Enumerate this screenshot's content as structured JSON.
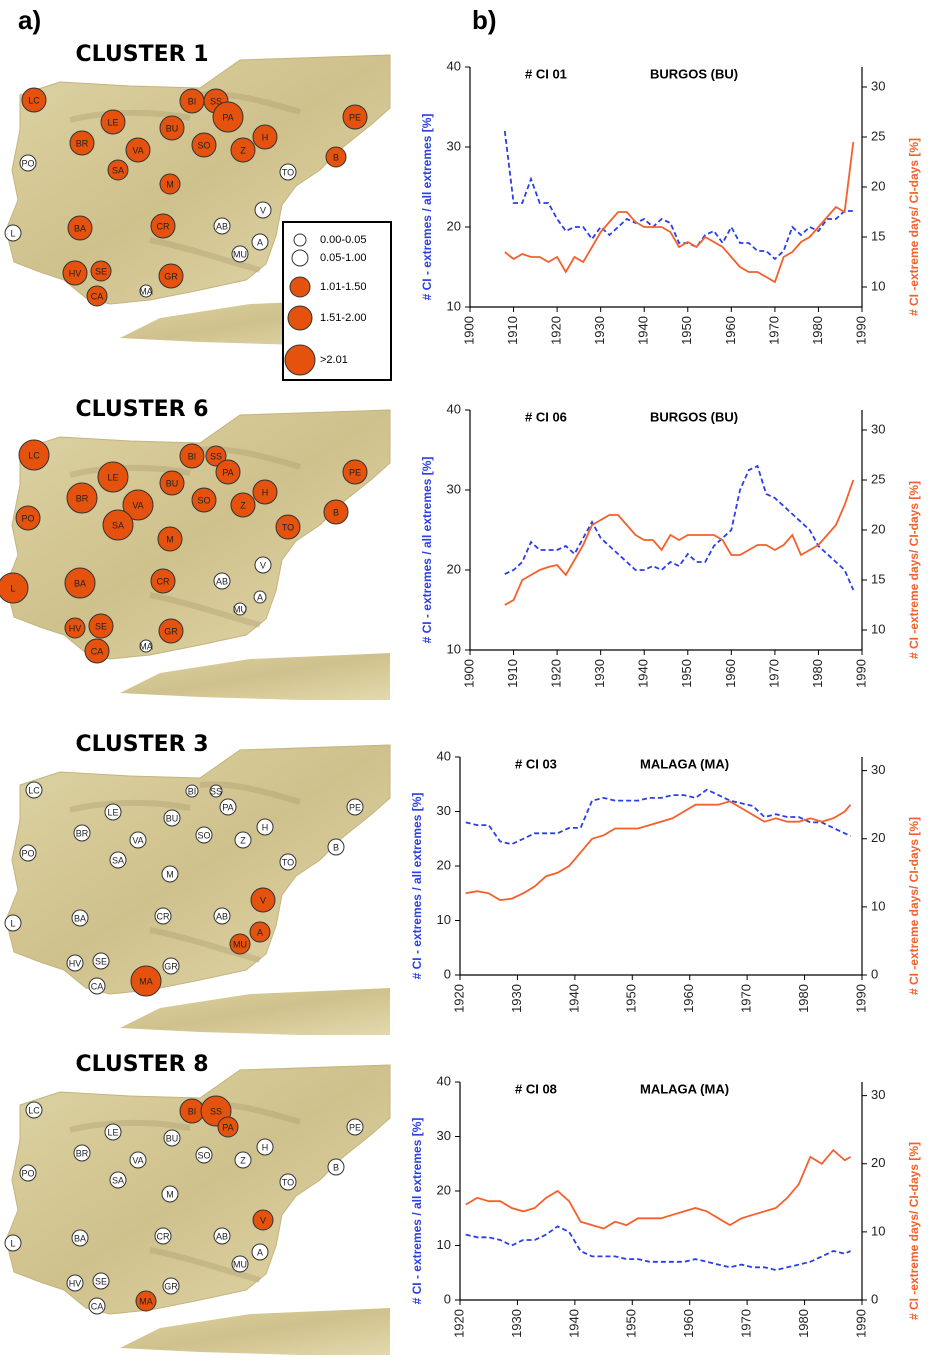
{
  "panel_labels": [
    "a)",
    "b)"
  ],
  "legend": {
    "labels": [
      "0.00-0.05",
      "0.05-1.00",
      "1.01-1.50",
      "1.51-2.00",
      ">2.01"
    ]
  },
  "maps": [
    {
      "title": "CLUSTER 1",
      "stations": [
        {
          "label": "LC",
          "class": 3
        },
        {
          "label": "PO",
          "class": 1
        },
        {
          "label": "BR",
          "class": 3
        },
        {
          "label": "LE",
          "class": 3
        },
        {
          "label": "VA",
          "class": 3
        },
        {
          "label": "SA",
          "class": 2
        },
        {
          "label": "BU",
          "class": 3
        },
        {
          "label": "BI",
          "class": 3
        },
        {
          "label": "SS",
          "class": 3
        },
        {
          "label": "PA",
          "class": 4
        },
        {
          "label": "SO",
          "class": 3
        },
        {
          "label": "H",
          "class": 3
        },
        {
          "label": "Z",
          "class": 3
        },
        {
          "label": "PE",
          "class": 3
        },
        {
          "label": "B",
          "class": 2
        },
        {
          "label": "TO",
          "class": 1
        },
        {
          "label": "M",
          "class": 2
        },
        {
          "label": "V",
          "class": 1
        },
        {
          "label": "CR",
          "class": 3
        },
        {
          "label": "AB",
          "class": 1
        },
        {
          "label": "A",
          "class": 1
        },
        {
          "label": "MU",
          "class": 1
        },
        {
          "label": "BA",
          "class": 3
        },
        {
          "label": "L",
          "class": 1
        },
        {
          "label": "HV",
          "class": 3
        },
        {
          "label": "SE",
          "class": 2
        },
        {
          "label": "CA",
          "class": 2
        },
        {
          "label": "MA",
          "class": 0
        },
        {
          "label": "GR",
          "class": 3
        }
      ]
    },
    {
      "title": "CLUSTER 6",
      "stations": [
        {
          "label": "LC",
          "class": 4
        },
        {
          "label": "PO",
          "class": 3
        },
        {
          "label": "BR",
          "class": 4
        },
        {
          "label": "LE",
          "class": 4
        },
        {
          "label": "VA",
          "class": 4
        },
        {
          "label": "SA",
          "class": 4
        },
        {
          "label": "BU",
          "class": 3
        },
        {
          "label": "BI",
          "class": 3
        },
        {
          "label": "SS",
          "class": 2
        },
        {
          "label": "PA",
          "class": 3
        },
        {
          "label": "SO",
          "class": 3
        },
        {
          "label": "H",
          "class": 3
        },
        {
          "label": "Z",
          "class": 3
        },
        {
          "label": "PE",
          "class": 3
        },
        {
          "label": "B",
          "class": 3
        },
        {
          "label": "TO",
          "class": 3
        },
        {
          "label": "M",
          "class": 3
        },
        {
          "label": "V",
          "class": 1
        },
        {
          "label": "CR",
          "class": 3
        },
        {
          "label": "AB",
          "class": 1
        },
        {
          "label": "A",
          "class": 0
        },
        {
          "label": "MU",
          "class": 0
        },
        {
          "label": "BA",
          "class": 4
        },
        {
          "label": "L",
          "class": 4
        },
        {
          "label": "HV",
          "class": 2
        },
        {
          "label": "SE",
          "class": 3
        },
        {
          "label": "CA",
          "class": 3
        },
        {
          "label": "MA",
          "class": 0
        },
        {
          "label": "GR",
          "class": 3
        }
      ]
    },
    {
      "title": "CLUSTER 3",
      "stations": [
        {
          "label": "LC",
          "class": 1
        },
        {
          "label": "PO",
          "class": 1
        },
        {
          "label": "BR",
          "class": 1
        },
        {
          "label": "LE",
          "class": 1
        },
        {
          "label": "VA",
          "class": 1
        },
        {
          "label": "SA",
          "class": 1
        },
        {
          "label": "BU",
          "class": 1
        },
        {
          "label": "BI",
          "class": 0
        },
        {
          "label": "SS",
          "class": 0
        },
        {
          "label": "PA",
          "class": 1
        },
        {
          "label": "SO",
          "class": 1
        },
        {
          "label": "H",
          "class": 1
        },
        {
          "label": "Z",
          "class": 1
        },
        {
          "label": "PE",
          "class": 1
        },
        {
          "label": "B",
          "class": 1
        },
        {
          "label": "TO",
          "class": 1
        },
        {
          "label": "M",
          "class": 1
        },
        {
          "label": "V",
          "class": 3
        },
        {
          "label": "CR",
          "class": 1
        },
        {
          "label": "AB",
          "class": 1
        },
        {
          "label": "A",
          "class": 2
        },
        {
          "label": "MU",
          "class": 2
        },
        {
          "label": "BA",
          "class": 1
        },
        {
          "label": "L",
          "class": 1
        },
        {
          "label": "HV",
          "class": 1
        },
        {
          "label": "SE",
          "class": 1
        },
        {
          "label": "CA",
          "class": 1
        },
        {
          "label": "MA",
          "class": 4
        },
        {
          "label": "GR",
          "class": 1
        }
      ]
    },
    {
      "title": "CLUSTER 8",
      "stations": [
        {
          "label": "LC",
          "class": 1
        },
        {
          "label": "PO",
          "class": 1
        },
        {
          "label": "BR",
          "class": 1
        },
        {
          "label": "LE",
          "class": 1
        },
        {
          "label": "VA",
          "class": 1
        },
        {
          "label": "SA",
          "class": 1
        },
        {
          "label": "BU",
          "class": 1
        },
        {
          "label": "BI",
          "class": 3
        },
        {
          "label": "SS",
          "class": 4
        },
        {
          "label": "PA",
          "class": 2
        },
        {
          "label": "SO",
          "class": 1
        },
        {
          "label": "H",
          "class": 1
        },
        {
          "label": "Z",
          "class": 1
        },
        {
          "label": "PE",
          "class": 1
        },
        {
          "label": "B",
          "class": 1
        },
        {
          "label": "TO",
          "class": 1
        },
        {
          "label": "M",
          "class": 1
        },
        {
          "label": "V",
          "class": 2
        },
        {
          "label": "CR",
          "class": 1
        },
        {
          "label": "AB",
          "class": 1
        },
        {
          "label": "A",
          "class": 1
        },
        {
          "label": "MU",
          "class": 1
        },
        {
          "label": "BA",
          "class": 1
        },
        {
          "label": "L",
          "class": 1
        },
        {
          "label": "HV",
          "class": 1
        },
        {
          "label": "SE",
          "class": 1
        },
        {
          "label": "CA",
          "class": 1
        },
        {
          "label": "MA",
          "class": 2
        },
        {
          "label": "GR",
          "class": 1
        }
      ]
    }
  ],
  "chart_data": [
    {
      "type": "line",
      "title": "# CI 01",
      "subtitle": "BURGOS (BU)",
      "ylabel": "# CI - extremes / all extremes   [%]",
      "y2label": "# CI -extreme days/ CI-days [%]",
      "x": [
        1908,
        1910,
        1912,
        1914,
        1916,
        1918,
        1920,
        1922,
        1924,
        1926,
        1928,
        1930,
        1932,
        1934,
        1936,
        1938,
        1940,
        1942,
        1944,
        1946,
        1948,
        1950,
        1952,
        1954,
        1956,
        1958,
        1960,
        1962,
        1964,
        1966,
        1968,
        1970,
        1972,
        1974,
        1976,
        1978,
        1980,
        1982,
        1984,
        1986,
        1988
      ],
      "xlim": [
        1900,
        1990
      ],
      "xticks": [
        1900,
        1910,
        1920,
        1930,
        1940,
        1950,
        1960,
        1970,
        1980,
        1990
      ],
      "ylim": [
        10,
        40
      ],
      "yticks": [
        10,
        20,
        30,
        40
      ],
      "y2lim": [
        8,
        32
      ],
      "y2ticks": [
        10,
        15,
        20,
        25,
        30
      ],
      "series": [
        {
          "color": "#2a3fe8",
          "dash": true,
          "values": [
            32,
            23,
            23,
            26,
            23,
            23,
            21,
            19.5,
            20,
            20,
            18.5,
            20,
            19,
            20,
            21,
            20.5,
            21,
            20,
            21,
            20.5,
            18,
            18,
            17.5,
            19,
            19.5,
            18,
            20,
            18,
            18,
            17,
            17,
            16,
            17,
            20,
            19,
            20,
            19.5,
            21,
            21,
            22,
            22
          ]
        },
        {
          "color": "#f4602c",
          "axis": "y2",
          "values": [
            13.5,
            12.8,
            13.3,
            13,
            13,
            12.5,
            13,
            11.5,
            13,
            12.5,
            14,
            15.5,
            16.5,
            17.5,
            17.5,
            16.5,
            16,
            16,
            16,
            15.5,
            14,
            14.5,
            14,
            15,
            14.5,
            14,
            13,
            12,
            11.5,
            11.5,
            11,
            10.5,
            13,
            13.5,
            14.5,
            15,
            16,
            17,
            18,
            17.5,
            24.5
          ]
        }
      ]
    },
    {
      "type": "line",
      "title": "# CI 06",
      "subtitle": "BURGOS (BU)",
      "ylabel": "# CI - extremes / all extremes   [%]",
      "y2label": "# CI -extreme days/ CI-days [%]",
      "x": [
        1908,
        1910,
        1912,
        1914,
        1916,
        1918,
        1920,
        1922,
        1924,
        1926,
        1928,
        1930,
        1932,
        1934,
        1936,
        1938,
        1940,
        1942,
        1944,
        1946,
        1948,
        1950,
        1952,
        1954,
        1956,
        1958,
        1960,
        1962,
        1964,
        1966,
        1968,
        1970,
        1972,
        1974,
        1976,
        1978,
        1980,
        1982,
        1984,
        1986,
        1988
      ],
      "xlim": [
        1900,
        1990
      ],
      "xticks": [
        1900,
        1910,
        1920,
        1930,
        1940,
        1950,
        1960,
        1970,
        1980,
        1990
      ],
      "ylim": [
        10,
        40
      ],
      "yticks": [
        10,
        20,
        30,
        40
      ],
      "y2lim": [
        8,
        32
      ],
      "y2ticks": [
        10,
        15,
        20,
        25,
        30
      ],
      "series": [
        {
          "color": "#2a3fe8",
          "dash": true,
          "values": [
            19.5,
            20,
            21,
            23.5,
            22.5,
            22.5,
            22.5,
            23,
            22,
            24,
            26,
            24,
            23,
            22,
            21,
            20,
            20,
            20.5,
            20,
            21,
            20.5,
            22,
            21,
            21,
            23,
            24,
            25,
            30,
            32.5,
            33,
            29.5,
            29,
            28,
            27,
            26,
            25,
            23,
            22,
            21,
            20,
            17.5
          ]
        },
        {
          "color": "#f4602c",
          "axis": "y2",
          "values": [
            12.5,
            13,
            15,
            15.5,
            16,
            16.3,
            16.5,
            15.5,
            17,
            18.5,
            20.5,
            21,
            21.5,
            21.5,
            20.5,
            19.5,
            19,
            19,
            18,
            19.5,
            19,
            19.5,
            19.5,
            19.5,
            19.5,
            19,
            17.5,
            17.5,
            18,
            18.5,
            18.5,
            18,
            18.5,
            19.5,
            17.5,
            18,
            18.5,
            19.5,
            20.5,
            22.5,
            25
          ]
        }
      ]
    },
    {
      "type": "line",
      "title": "# CI 03",
      "subtitle": "MALAGA (MA)",
      "ylabel": "# CI - extremes / all extremes   [%]",
      "y2label": "# CI -extreme days/ CI-days [%]",
      "x": [
        1921,
        1923,
        1925,
        1927,
        1929,
        1931,
        1933,
        1935,
        1937,
        1939,
        1941,
        1943,
        1945,
        1947,
        1949,
        1951,
        1953,
        1955,
        1957,
        1959,
        1961,
        1963,
        1965,
        1967,
        1969,
        1971,
        1973,
        1975,
        1977,
        1979,
        1981,
        1983,
        1985,
        1987,
        1988
      ],
      "xlim": [
        1920,
        1990
      ],
      "xticks": [
        1920,
        1930,
        1940,
        1950,
        1960,
        1970,
        1980,
        1990
      ],
      "ylim": [
        0,
        40
      ],
      "yticks": [
        0,
        10,
        20,
        30,
        40
      ],
      "y2lim": [
        0,
        32
      ],
      "y2ticks": [
        0,
        10,
        20,
        30
      ],
      "series": [
        {
          "color": "#2a3fe8",
          "dash": true,
          "values": [
            28,
            27.5,
            27.5,
            24.5,
            24,
            25,
            26,
            26,
            26,
            27,
            27,
            32,
            32.5,
            32,
            32,
            32,
            32.5,
            32.5,
            33,
            33,
            32.5,
            34,
            33,
            32,
            31.5,
            31,
            29,
            29.5,
            29,
            29,
            28,
            28,
            27,
            26,
            25.5
          ]
        },
        {
          "color": "#f4602c",
          "axis": "y2",
          "values": [
            12,
            12.3,
            12,
            11,
            11.2,
            12,
            13,
            14.5,
            15,
            16,
            18,
            20,
            20.5,
            21.5,
            21.5,
            21.5,
            22,
            22.5,
            23,
            24,
            25,
            25,
            25,
            25.5,
            24.5,
            23.5,
            22.5,
            23,
            22.5,
            22.5,
            23,
            22.5,
            23,
            24,
            25
          ]
        }
      ]
    },
    {
      "type": "line",
      "title": "# CI 08",
      "subtitle": "MALAGA (MA)",
      "ylabel": "# CI - extremes / all extremes   [%]",
      "y2label": "# CI -extreme days/ CI-days [%]",
      "x": [
        1921,
        1923,
        1925,
        1927,
        1929,
        1931,
        1933,
        1935,
        1937,
        1939,
        1941,
        1943,
        1945,
        1947,
        1949,
        1951,
        1953,
        1955,
        1957,
        1959,
        1961,
        1963,
        1965,
        1967,
        1969,
        1971,
        1973,
        1975,
        1977,
        1979,
        1981,
        1983,
        1985,
        1987,
        1988
      ],
      "xlim": [
        1920,
        1990
      ],
      "xticks": [
        1920,
        1930,
        1940,
        1950,
        1960,
        1970,
        1980,
        1990
      ],
      "ylim": [
        0,
        40
      ],
      "yticks": [
        0,
        10,
        20,
        30,
        40
      ],
      "y2lim": [
        0,
        32
      ],
      "y2ticks": [
        0,
        10,
        20,
        30
      ],
      "series": [
        {
          "color": "#2a3fe8",
          "dash": true,
          "values": [
            12,
            11.5,
            11.5,
            11,
            10,
            11,
            11,
            12,
            13.5,
            12.5,
            9,
            8,
            8,
            8,
            7.5,
            7.5,
            7,
            7,
            7,
            7,
            7.5,
            7,
            6.5,
            6,
            6.5,
            6,
            6,
            5.5,
            6,
            6.5,
            7,
            8,
            9,
            8.5,
            9
          ]
        },
        {
          "color": "#f4602c",
          "axis": "y2",
          "values": [
            14,
            15,
            14.5,
            14.5,
            13.5,
            13,
            13.5,
            15,
            16,
            14.5,
            11.5,
            11,
            10.5,
            11.5,
            11,
            12,
            12,
            12,
            12.5,
            13,
            13.5,
            13,
            12,
            11,
            12,
            12.5,
            13,
            13.5,
            15,
            17,
            21,
            20,
            22,
            20.5,
            21
          ]
        }
      ]
    }
  ]
}
